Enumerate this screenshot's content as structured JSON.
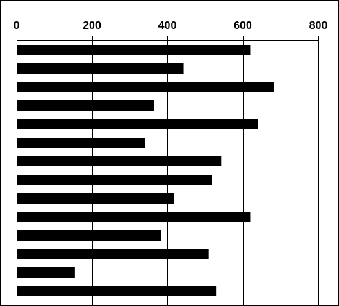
{
  "chart_data": {
    "type": "bar",
    "orientation": "horizontal",
    "x_axis_position": "top",
    "title": "",
    "xlabel": "",
    "ylabel": "",
    "xlim": [
      0,
      800
    ],
    "x_ticks": [
      0,
      200,
      400,
      600,
      800
    ],
    "x_tick_labels": [
      "0",
      "200",
      "400",
      "600",
      "800"
    ],
    "grid": {
      "vertical": true,
      "horizontal": false
    },
    "bar_color": "#000000",
    "grid_color": "#000000",
    "background_color": "#ffffff",
    "values": [
      620,
      443,
      682,
      365,
      640,
      340,
      543,
      517,
      418,
      620,
      383,
      509,
      155,
      530
    ]
  }
}
